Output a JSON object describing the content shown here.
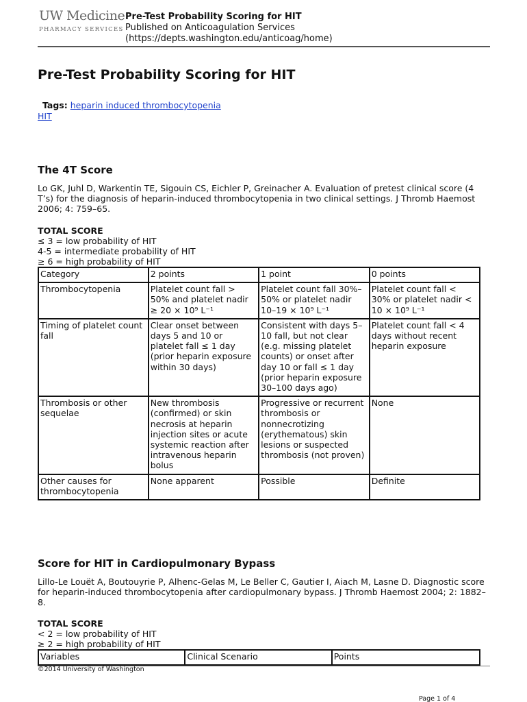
{
  "header": {
    "logo_main": "UW Medicine",
    "logo_sub": "PHARMACY SERVICES",
    "title": "Pre-Test Probability Scoring for HIT",
    "published": "Published on Anticoagulation Services",
    "url": "(https://depts.washington.edu/anticoag/home)"
  },
  "page_title": "Pre-Test Probability Scoring for HIT",
  "tags": {
    "label": "Tags:",
    "items": [
      "heparin induced thrombocytopenia",
      "HIT"
    ]
  },
  "section1": {
    "title": "The 4T Score",
    "citation": "Lo GK, Juhl D, Warkentin TE, Sigouin CS, Eichler P, Greinacher A. Evaluation of pretest clinical score (4 T’s) for the diagnosis of heparin-induced thrombocytopenia in two clinical settings. J Thromb Haemost 2006; 4: 759–65.",
    "total_label": "TOTAL SCORE",
    "scores": [
      "≤ 3 = low probability of HIT",
      "4-5 = intermediate probability of HIT",
      "≥ 6 = high probability of HIT"
    ],
    "table": {
      "headers": [
        "Category",
        "2 points",
        "1 point",
        "0 points"
      ],
      "rows": [
        [
          "Thrombocytopenia",
          "Platelet count fall > 50% and platelet nadir ≥ 20 × 10⁹ L⁻¹",
          "Platelet count fall 30%–50% or platelet nadir 10–19 × 10⁹ L⁻¹",
          "Platelet count fall < 30% or platelet nadir < 10 × 10⁹ L⁻¹"
        ],
        [
          "Timing of platelet count fall",
          "Clear onset between days 5 and 10 or platelet fall ≤ 1 day (prior heparin exposure within 30 days)",
          "Consistent with days 5–10 fall, but not clear (e.g. missing platelet counts) or onset after day 10 or fall ≤ 1 day (prior heparin exposure 30–100 days ago)",
          "Platelet count fall < 4 days without recent heparin exposure"
        ],
        [
          "Thrombosis or other sequelae",
          "New thrombosis (confirmed) or skin necrosis at heparin injection sites or acute systemic reaction after intravenous heparin bolus",
          "Progressive or recurrent thrombosis or nonnecrotizing (erythematous) skin lesions or suspected thrombosis (not proven)",
          "None"
        ],
        [
          "Other causes for thrombocytopenia",
          "None apparent",
          "Possible",
          "Definite"
        ]
      ]
    }
  },
  "section2": {
    "title": "Score for HIT in Cardiopulmonary Bypass",
    "citation": "Lillo-Le Louët A, Boutouyrie P, Alhenc-Gelas M, Le Beller C, Gautier I, Aiach M, Lasne D. Diagnostic score for heparin-induced thrombocytopenia after cardiopulmonary bypass. J Thromb Haemost 2004; 2: 1882–8.",
    "total_label": "TOTAL SCORE",
    "scores": [
      "< 2 = low probability of HIT",
      "≥ 2 = high probability of HIT"
    ],
    "table": {
      "headers": [
        "Variables",
        "Clinical Scenario",
        "Points"
      ]
    }
  },
  "footer": {
    "copyright": "©2014 University of Washington",
    "page": "Page 1 of 4"
  }
}
